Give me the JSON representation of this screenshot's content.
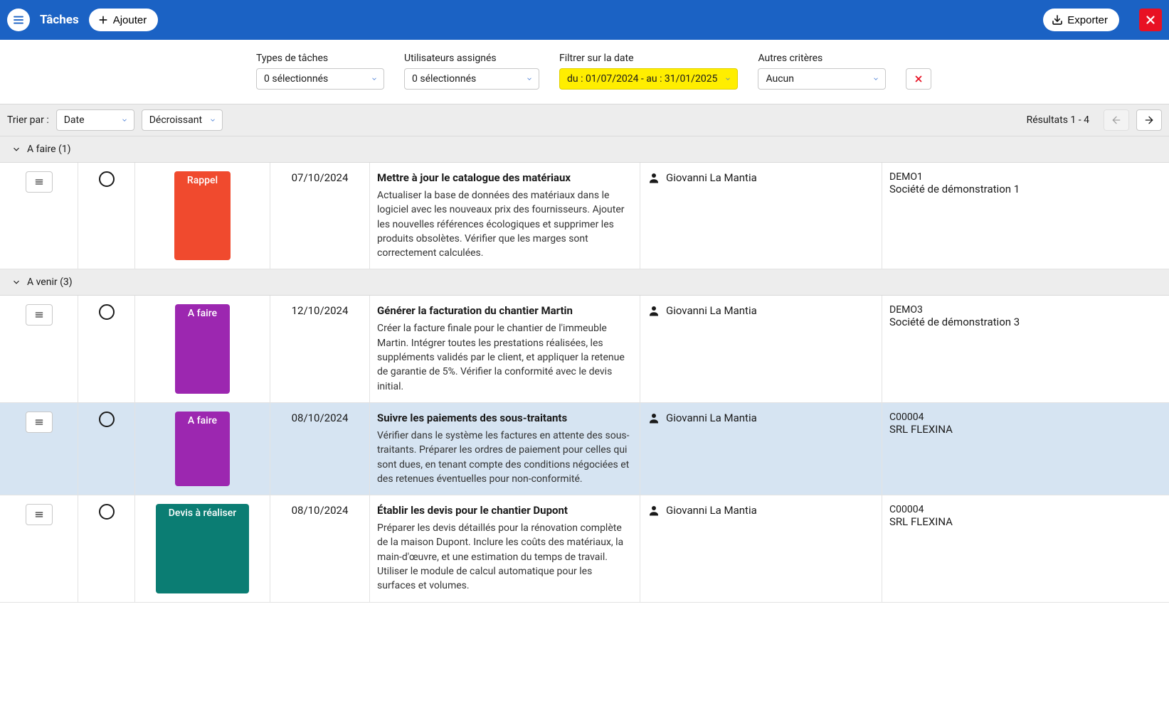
{
  "colors": {
    "primary_blue": "#1b62c4",
    "sort_bg": "#ededed",
    "row_selected": "#d6e4f2",
    "danger": "#e81123",
    "highlight_yellow": "#ffee00"
  },
  "topbar": {
    "title": "Tâches",
    "add_label": "Ajouter",
    "export_label": "Exporter"
  },
  "filters": {
    "task_types": {
      "label": "Types de tâches",
      "value": "0 sélectionnés"
    },
    "assigned_users": {
      "label": "Utilisateurs assignés",
      "value": "0 sélectionnés"
    },
    "date": {
      "label": "Filtrer sur la date",
      "value": "du : 01/07/2024 - au : 31/01/2025",
      "highlighted": true
    },
    "other": {
      "label": "Autres critères",
      "value": "Aucun"
    }
  },
  "sortbar": {
    "label": "Trier par :",
    "field": "Date",
    "direction": "Décroissant",
    "results_label": "Résultats 1 - 4"
  },
  "groups": [
    {
      "title": "A faire (1)",
      "tasks": [
        {
          "badge": {
            "text": "Rappel",
            "color": "#f04a2e"
          },
          "date": "07/10/2024",
          "title": "Mettre à jour le catalogue des matériaux",
          "description": "Actualiser la base de données des matériaux dans le logiciel avec les nouveaux prix des fournisseurs. Ajouter les nouvelles références écologiques et supprimer les produits obsolètes. Vérifier que les marges sont correctement calculées.",
          "assignee": "Giovanni La Mantia",
          "company_code": "DEMO1",
          "company_name": "Société de démonstration 1",
          "selected": false
        }
      ]
    },
    {
      "title": "A venir (3)",
      "tasks": [
        {
          "badge": {
            "text": "A faire",
            "color": "#9c27b0"
          },
          "date": "12/10/2024",
          "title": "Générer la facturation du chantier Martin",
          "description": "Créer la facture finale pour le chantier de l'immeuble Martin. Intégrer toutes les prestations réalisées, les suppléments validés par le client, et appliquer la retenue de garantie de 5%. Vérifier la conformité avec le devis initial.",
          "assignee": "Giovanni La Mantia",
          "company_code": "DEMO3",
          "company_name": "Société de démonstration 3",
          "selected": false
        },
        {
          "badge": {
            "text": "A faire",
            "color": "#9c27b0"
          },
          "date": "08/10/2024",
          "title": "Suivre les paiements des sous-traitants",
          "description": "Vérifier dans le système les factures en attente des sous-traitants. Préparer les ordres de paiement pour celles qui sont dues, en tenant compte des conditions négociées et des retenues éventuelles pour non-conformité.",
          "assignee": "Giovanni La Mantia",
          "company_code": "C00004",
          "company_name": "SRL FLEXINA",
          "selected": true
        },
        {
          "badge": {
            "text": "Devis à réaliser",
            "color": "#0b7d73"
          },
          "date": "08/10/2024",
          "title": "Établir les devis pour le chantier Dupont",
          "description": "Préparer les devis détaillés pour la rénovation complète de la maison Dupont. Inclure les coûts des matériaux, la main-d'œuvre, et une estimation du temps de travail. Utiliser le module de calcul automatique pour les surfaces et volumes.",
          "assignee": "Giovanni La Mantia",
          "company_code": "C00004",
          "company_name": "SRL FLEXINA",
          "selected": false
        }
      ]
    }
  ]
}
